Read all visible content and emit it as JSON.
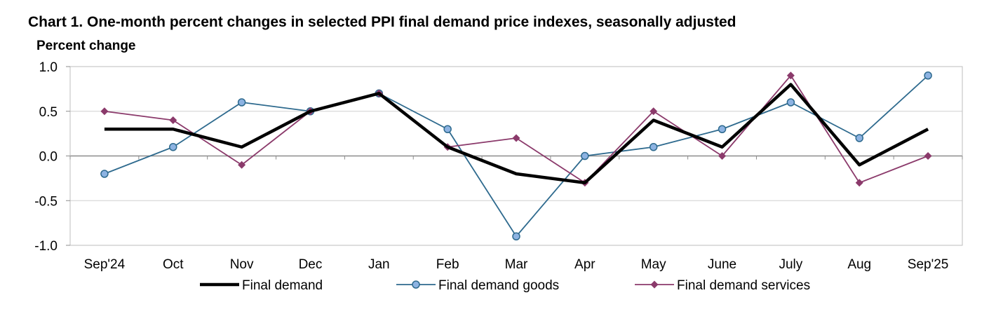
{
  "chart_data": {
    "type": "line",
    "title": "Chart 1. One-month percent changes in selected PPI final demand price indexes, seasonally adjusted",
    "ylabel": "Percent change",
    "xlabel": "",
    "categories": [
      "Sep'24",
      "Oct",
      "Nov",
      "Dec",
      "Jan",
      "Feb",
      "Mar",
      "Apr",
      "May",
      "June",
      "July",
      "Aug",
      "Sep'25"
    ],
    "ylim": [
      -1.0,
      1.0
    ],
    "yticks": [
      1.0,
      0.5,
      0.0,
      -0.5,
      -1.0
    ],
    "ytick_labels": [
      "1.0",
      "0.5",
      "0.0",
      "-0.5",
      "-1.0"
    ],
    "grid": true,
    "legend_position": "bottom",
    "series": [
      {
        "name": "Final demand",
        "values": [
          0.3,
          0.3,
          0.1,
          0.5,
          0.7,
          0.1,
          -0.2,
          -0.3,
          0.4,
          0.1,
          0.8,
          -0.1,
          0.3
        ],
        "color": "#000000",
        "marker": "none"
      },
      {
        "name": "Final demand goods",
        "values": [
          -0.2,
          0.1,
          0.6,
          0.5,
          0.7,
          0.3,
          -0.9,
          0.0,
          0.1,
          0.3,
          0.6,
          0.2,
          0.9
        ],
        "color": "#2E6A8E",
        "marker_fill": "#8DB3E2",
        "marker": "circle"
      },
      {
        "name": "Final demand services",
        "values": [
          0.5,
          0.4,
          -0.1,
          0.5,
          0.7,
          0.1,
          0.2,
          -0.3,
          0.5,
          0.0,
          0.9,
          -0.3,
          0.0
        ],
        "color": "#8B3A6B",
        "marker": "diamond"
      }
    ]
  }
}
